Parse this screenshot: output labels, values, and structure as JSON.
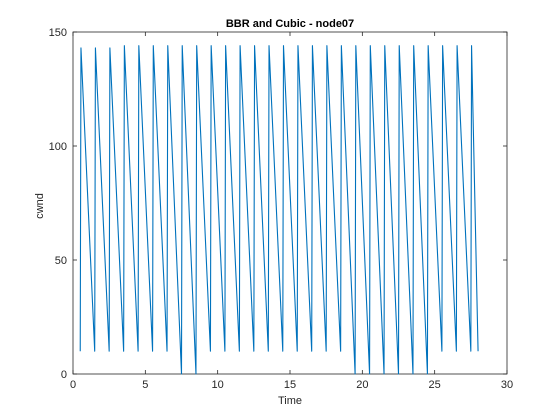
{
  "chart_data": {
    "type": "line",
    "title": "BBR and Cubic - node07",
    "xlabel": "Time",
    "ylabel": "cwnd",
    "xlim": [
      0,
      30
    ],
    "ylim": [
      0,
      150
    ],
    "xticks": [
      0,
      5,
      10,
      15,
      20,
      25,
      30
    ],
    "yticks": [
      0,
      50,
      100,
      150
    ],
    "xtick_labels": [
      "0",
      "5",
      "10",
      "15",
      "20",
      "25",
      "30"
    ],
    "ytick_labels": [
      "0",
      "50",
      "100",
      "150"
    ],
    "grid": false,
    "legend": "none",
    "line_color": "#0072BD",
    "series": [
      {
        "x": [
          0.5,
          0.55,
          1.5,
          1.55,
          2.5,
          2.55,
          3.5,
          3.55,
          4.5,
          4.55,
          5.5,
          5.55,
          6.5,
          6.55,
          7.5,
          7.55,
          8.5,
          8.55,
          9.5,
          9.55,
          10.5,
          10.55,
          11.5,
          11.55,
          12.5,
          12.55,
          13.5,
          13.55,
          14.5,
          14.55,
          15.5,
          15.55,
          16.5,
          16.55,
          17.5,
          17.55,
          18.5,
          18.55,
          19.5,
          19.55,
          20.5,
          20.55,
          21.5,
          21.55,
          22.5,
          22.55,
          23.5,
          23.55,
          24.5,
          24.55,
          25.5,
          25.55,
          26.5,
          26.55,
          27.5,
          27.55,
          28.0
        ],
        "y": [
          10,
          143,
          10,
          143,
          10,
          143,
          10,
          144,
          10,
          144,
          10,
          144,
          10,
          144,
          0,
          144,
          0,
          144,
          10,
          144,
          10,
          144,
          10,
          144,
          10,
          144,
          10,
          144,
          10,
          144,
          10,
          144,
          10,
          144,
          10,
          144,
          10,
          144,
          0,
          144,
          0,
          144,
          0,
          144,
          0,
          144,
          0,
          144,
          0,
          144,
          10,
          144,
          10,
          144,
          10,
          144,
          10
        ]
      }
    ]
  }
}
